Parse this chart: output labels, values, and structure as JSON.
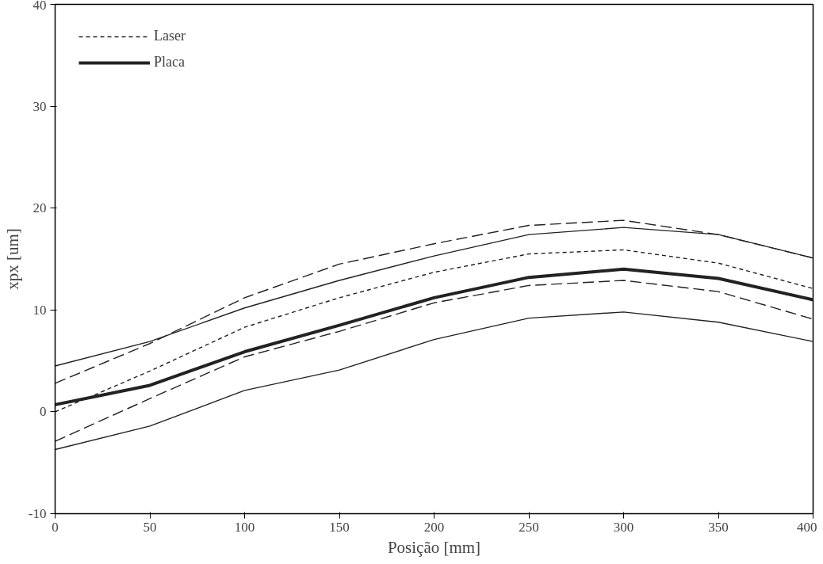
{
  "chart_data": {
    "type": "line",
    "xlabel": "Posição [mm]",
    "ylabel": "xpx [um]",
    "x": [
      0,
      50,
      100,
      150,
      200,
      250,
      300,
      350,
      400
    ],
    "series": [
      {
        "name": "Laser",
        "color": "#222222",
        "line_style": "dotted",
        "values": [
          0.0,
          4.0,
          8.3,
          11.2,
          13.7,
          15.5,
          15.9,
          14.6,
          12.1
        ]
      },
      {
        "name": "Placa",
        "color": "#222222",
        "line_style": "solid",
        "values": [
          0.7,
          2.6,
          5.9,
          8.5,
          11.2,
          13.2,
          14.0,
          13.1,
          11.0
        ]
      },
      {
        "color": "#222222",
        "line_style": "solid",
        "values": [
          4.5,
          6.9,
          10.2,
          12.9,
          15.3,
          17.4,
          18.1,
          17.4,
          15.1
        ]
      },
      {
        "color": "#222222",
        "line_style": "solid",
        "values": [
          -3.7,
          -1.4,
          2.1,
          4.1,
          7.1,
          9.2,
          9.8,
          8.8,
          6.9
        ]
      },
      {
        "color": "#222222",
        "line_style": "dashed",
        "values": [
          2.8,
          6.7,
          11.2,
          14.5,
          16.5,
          18.3,
          18.8,
          17.4,
          15.1
        ]
      },
      {
        "color": "#222222",
        "line_style": "dashed",
        "values": [
          -2.9,
          1.3,
          5.4,
          7.9,
          10.7,
          12.4,
          12.9,
          11.8,
          9.1
        ]
      }
    ],
    "xlim": [
      0,
      400
    ],
    "xticks": [
      0,
      50,
      100,
      150,
      200,
      250,
      300,
      350,
      400
    ],
    "ylim": [
      -10,
      40
    ],
    "yticks": [
      -10,
      0,
      10,
      20,
      30,
      40
    ],
    "grid": false,
    "legend": "top left"
  }
}
